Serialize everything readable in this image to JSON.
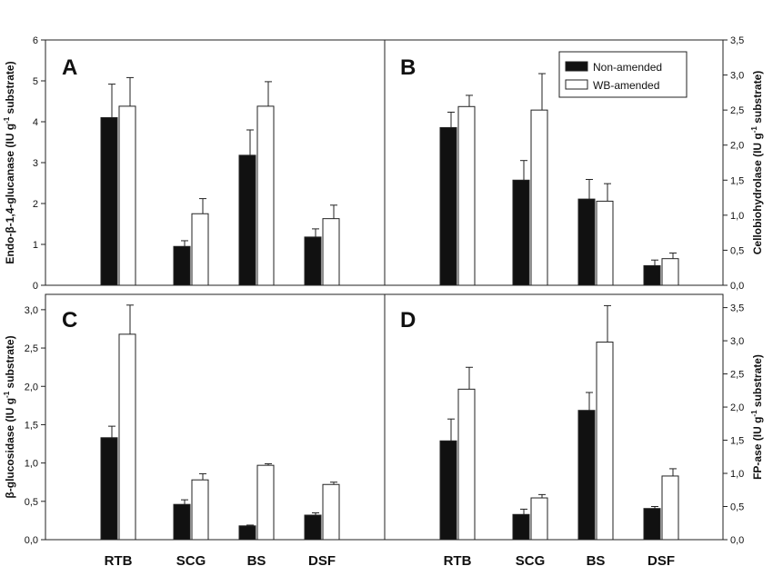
{
  "colors": {
    "non_amended": "#111111",
    "wb_amended": "#ffffff",
    "axis": "#222222"
  },
  "chart_data": [
    {
      "panel": "A",
      "type": "bar",
      "categories": [
        "RTB",
        "SCG",
        "BS",
        "DSF"
      ],
      "ylabel_main": "Endo-β-1,4-glucanase (IU g",
      "ylabel_sup": "-1",
      "ylabel_tail": " substrate)",
      "ylim": [
        0,
        6
      ],
      "yticks": [
        0,
        1,
        2,
        3,
        4,
        5,
        6
      ],
      "ytick_labels": [
        "0",
        "1",
        "2",
        "3",
        "4",
        "5",
        "6"
      ],
      "series": [
        {
          "name": "Non-amended",
          "values": [
            4.1,
            0.95,
            3.18,
            1.18
          ],
          "errors": [
            0.82,
            0.14,
            0.62,
            0.2
          ]
        },
        {
          "name": "WB-amended",
          "values": [
            4.38,
            1.75,
            4.38,
            1.63
          ],
          "errors": [
            0.7,
            0.37,
            0.6,
            0.33
          ]
        }
      ]
    },
    {
      "panel": "B",
      "type": "bar",
      "categories": [
        "RTB",
        "SCG",
        "BS",
        "DSF"
      ],
      "ylabel_main": "Cellobiohydrolase (IU g",
      "ylabel_sup": "-1",
      "ylabel_tail": " substrate)",
      "ylim": [
        0,
        3.5
      ],
      "yticks": [
        0,
        0.5,
        1,
        1.5,
        2,
        2.5,
        3,
        3.5
      ],
      "ytick_labels": [
        "0,0",
        "0,5",
        "1,0",
        "1,5",
        "2,0",
        "2,5",
        "3,0",
        "3,5"
      ],
      "legend": {
        "position": "top-right",
        "entries": [
          "Non-amended",
          "WB-amended"
        ]
      },
      "series": [
        {
          "name": "Non-amended",
          "values": [
            2.25,
            1.5,
            1.23,
            0.28
          ],
          "errors": [
            0.22,
            0.28,
            0.28,
            0.08
          ]
        },
        {
          "name": "WB-amended",
          "values": [
            2.55,
            2.5,
            1.2,
            0.38
          ],
          "errors": [
            0.16,
            0.52,
            0.25,
            0.08
          ]
        }
      ]
    },
    {
      "panel": "C",
      "type": "bar",
      "categories": [
        "RTB",
        "SCG",
        "BS",
        "DSF"
      ],
      "ylabel_main": "β-glucosidase (IU g",
      "ylabel_sup": "-1",
      "ylabel_tail": " substrate)",
      "ylim": [
        0,
        3.2
      ],
      "yticks": [
        0,
        0.5,
        1,
        1.5,
        2,
        2.5,
        3
      ],
      "ytick_labels": [
        "0,0",
        "0,5",
        "1,0",
        "1,5",
        "2,0",
        "2,5",
        "3,0"
      ],
      "series": [
        {
          "name": "Non-amended",
          "values": [
            1.33,
            0.46,
            0.18,
            0.32
          ],
          "errors": [
            0.15,
            0.06,
            0.01,
            0.03
          ]
        },
        {
          "name": "WB-amended",
          "values": [
            2.68,
            0.78,
            0.97,
            0.72
          ],
          "errors": [
            0.38,
            0.08,
            0.02,
            0.03
          ]
        }
      ]
    },
    {
      "panel": "D",
      "type": "bar",
      "categories": [
        "RTB",
        "SCG",
        "BS",
        "DSF"
      ],
      "ylabel_main": "FP-ase (IU g",
      "ylabel_sup": "-1",
      "ylabel_tail": " substrate)",
      "ylim": [
        0,
        3.7
      ],
      "yticks": [
        0,
        0.5,
        1,
        1.5,
        2,
        2.5,
        3,
        3.5
      ],
      "ytick_labels": [
        "0,0",
        "0,5",
        "1,0",
        "1,5",
        "2,0",
        "2,5",
        "3,0",
        "3,5"
      ],
      "series": [
        {
          "name": "Non-amended",
          "values": [
            1.49,
            0.38,
            1.95,
            0.47
          ],
          "errors": [
            0.33,
            0.08,
            0.27,
            0.03
          ]
        },
        {
          "name": "WB-amended",
          "values": [
            2.27,
            0.63,
            2.98,
            0.96
          ],
          "errors": [
            0.33,
            0.05,
            0.55,
            0.11
          ]
        }
      ]
    }
  ]
}
